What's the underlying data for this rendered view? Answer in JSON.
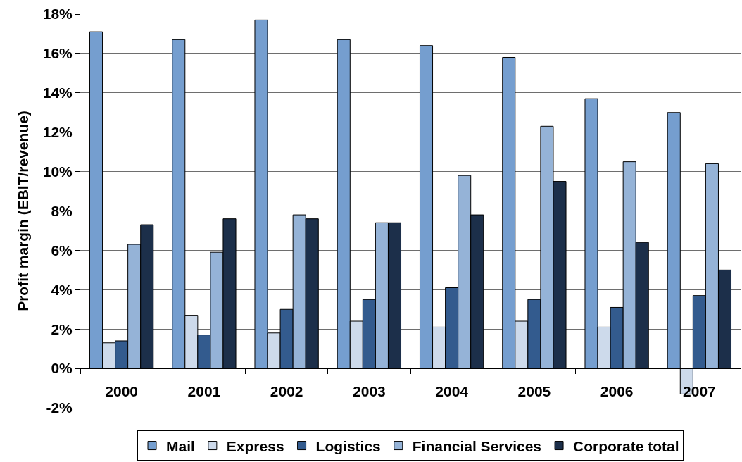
{
  "chart_data": {
    "type": "bar",
    "ylabel": "Profit margin (EBIT/revenue)",
    "categories": [
      "2000",
      "2001",
      "2002",
      "2003",
      "2004",
      "2005",
      "2006",
      "2007"
    ],
    "series": [
      {
        "name": "Mail",
        "color": "#759ecf",
        "values": [
          17.1,
          16.7,
          17.7,
          16.7,
          16.4,
          15.8,
          13.7,
          13.0
        ]
      },
      {
        "name": "Express",
        "color": "#cddaeb",
        "values": [
          1.3,
          2.7,
          1.8,
          2.4,
          2.1,
          2.4,
          2.1,
          -1.3
        ]
      },
      {
        "name": "Logistics",
        "color": "#335b8e",
        "values": [
          1.4,
          1.7,
          3.0,
          3.5,
          4.1,
          3.5,
          3.1,
          3.7
        ]
      },
      {
        "name": "Financial Services",
        "color": "#95b3d7",
        "values": [
          6.3,
          5.9,
          7.8,
          7.4,
          9.8,
          12.3,
          10.5,
          10.4
        ]
      },
      {
        "name": "Corporate total",
        "color": "#1c2f4a",
        "values": [
          7.3,
          7.6,
          7.6,
          7.4,
          7.8,
          9.5,
          6.4,
          5.0
        ]
      }
    ],
    "ylim": [
      -2,
      18
    ],
    "yticks": [
      {
        "value": -2,
        "label": "-2%"
      },
      {
        "value": 0,
        "label": "0%"
      },
      {
        "value": 2,
        "label": "2%"
      },
      {
        "value": 4,
        "label": "4%"
      },
      {
        "value": 6,
        "label": "6%"
      },
      {
        "value": 8,
        "label": "8%"
      },
      {
        "value": 10,
        "label": "10%"
      },
      {
        "value": 12,
        "label": "12%"
      },
      {
        "value": 14,
        "label": "14%"
      },
      {
        "value": 16,
        "label": "16%"
      },
      {
        "value": 18,
        "label": "18%"
      }
    ],
    "grid": "y",
    "legend": "bottom"
  }
}
